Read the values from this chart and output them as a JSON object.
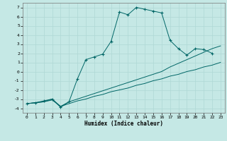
{
  "xlabel": "Humidex (Indice chaleur)",
  "xlim": [
    -0.5,
    23.5
  ],
  "ylim": [
    -4.5,
    7.5
  ],
  "yticks": [
    -4,
    -3,
    -2,
    -1,
    0,
    1,
    2,
    3,
    4,
    5,
    6,
    7
  ],
  "xticks": [
    0,
    1,
    2,
    3,
    4,
    5,
    6,
    7,
    8,
    9,
    10,
    11,
    12,
    13,
    14,
    15,
    16,
    17,
    18,
    19,
    20,
    21,
    22,
    23
  ],
  "bg_color": "#c5e8e5",
  "line_color": "#006666",
  "grid_color": "#afd8d5",
  "series1_x": [
    0,
    1,
    2,
    3,
    4,
    5,
    6,
    7,
    8,
    9,
    10,
    11,
    12,
    13,
    14,
    15,
    16,
    17,
    18,
    19,
    20,
    21,
    22,
    23
  ],
  "series1_y": [
    -3.5,
    -3.4,
    -3.3,
    -3.1,
    -3.8,
    -3.5,
    -3.2,
    -3.0,
    -2.7,
    -2.5,
    -2.2,
    -2.0,
    -1.8,
    -1.5,
    -1.3,
    -1.0,
    -0.8,
    -0.5,
    -0.3,
    0.0,
    0.2,
    0.5,
    0.7,
    1.0
  ],
  "series2_x": [
    0,
    1,
    2,
    3,
    4,
    5,
    6,
    7,
    8,
    9,
    10,
    11,
    12,
    13,
    14,
    15,
    16,
    17,
    18,
    19,
    20,
    21,
    22,
    23
  ],
  "series2_y": [
    -3.5,
    -3.4,
    -3.3,
    -3.0,
    -3.8,
    -3.3,
    -3.0,
    -2.7,
    -2.4,
    -2.1,
    -1.8,
    -1.5,
    -1.2,
    -0.9,
    -0.6,
    -0.3,
    0.0,
    0.5,
    0.9,
    1.3,
    1.7,
    2.1,
    2.5,
    2.8
  ],
  "series3_x": [
    0,
    1,
    2,
    3,
    4,
    5,
    6,
    7,
    8,
    9,
    10,
    11,
    12,
    13,
    14,
    15,
    16,
    17,
    18,
    19,
    20,
    21,
    22
  ],
  "series3_y": [
    -3.5,
    -3.4,
    -3.2,
    -3.0,
    -3.9,
    -3.3,
    -0.8,
    1.3,
    1.6,
    1.9,
    3.3,
    6.5,
    6.2,
    7.0,
    6.8,
    6.6,
    6.4,
    3.4,
    2.5,
    1.8,
    2.5,
    2.4,
    2.0
  ]
}
